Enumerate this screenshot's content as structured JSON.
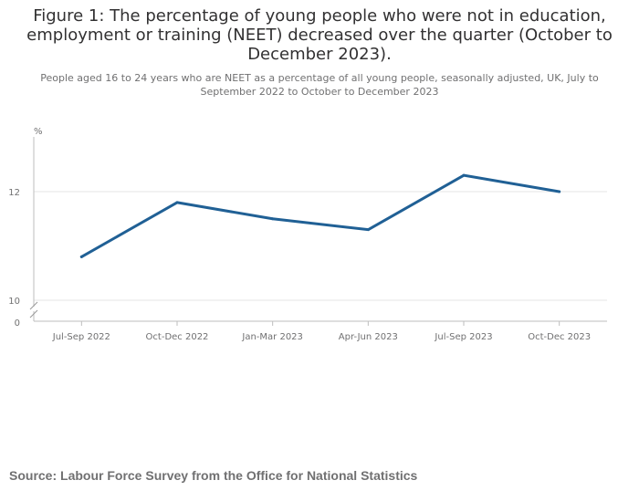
{
  "title": "Figure 1: The percentage of young people who were not in education, employment or training (NEET) decreased over the quarter (October to December 2023).",
  "subtitle": "People aged 16 to 24 years who are NEET as a percentage of all young people, seasonally adjusted, UK, July to September 2022 to October to December 2023",
  "source": "Source: Labour Force Survey from the Office for National Statistics",
  "chart_data": {
    "type": "line",
    "categories": [
      "Jul-Sep 2022",
      "Oct-Dec 2022",
      "Jan-Mar 2023",
      "Apr-Jun 2023",
      "Jul-Sep 2023",
      "Oct-Dec 2023"
    ],
    "series": [
      {
        "values": [
          10.8,
          11.8,
          11.5,
          11.3,
          12.3,
          12.0
        ],
        "color": "#206095"
      }
    ],
    "y_unit": "%",
    "y_ticks": [
      "10",
      "12"
    ],
    "y_baseline_label": "0",
    "ylim": [
      10,
      13
    ],
    "axis_break": true,
    "grid": true,
    "legend": "none"
  }
}
